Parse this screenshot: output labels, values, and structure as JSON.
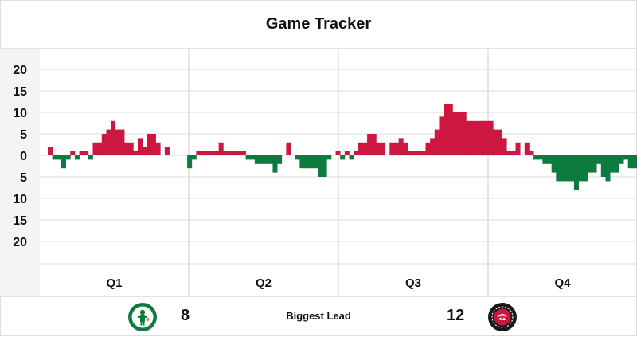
{
  "title": "Game Tracker",
  "colors": {
    "home": "#0d7a3e",
    "away": "#cc1740",
    "grid": "#dddddd",
    "axis_bg": "#f4f4f4"
  },
  "chart_data": {
    "type": "bar",
    "title": "Game Tracker",
    "y_tick_labels": [
      "20",
      "15",
      "10",
      "5",
      "0",
      "5",
      "10",
      "15",
      "20"
    ],
    "ylim": [
      -20,
      20
    ],
    "quarters": [
      "Q1",
      "Q2",
      "Q3",
      "Q4"
    ],
    "grid": true,
    "series": [
      {
        "team": "away",
        "note": "positive value = Raptors lead, negative value = Celtics lead",
        "values": [
          2,
          -1,
          -1,
          -3,
          -1,
          1,
          -1,
          1,
          1,
          -1,
          3,
          3,
          5,
          6,
          8,
          6,
          6,
          3,
          3,
          1,
          4,
          2,
          5,
          5,
          3,
          0,
          2,
          0,
          0,
          0,
          0,
          -3,
          -1,
          1,
          1,
          1,
          1,
          1,
          3,
          1,
          1,
          1,
          1,
          1,
          -1,
          -1,
          -2,
          -2,
          -2,
          -2,
          -4,
          -2,
          0,
          3,
          0,
          -1,
          -3,
          -3,
          -3,
          -3,
          -5,
          -5,
          -1,
          0,
          1,
          -1,
          1,
          -1,
          1,
          3,
          3,
          5,
          5,
          3,
          3,
          0,
          3,
          3,
          4,
          3,
          1,
          1,
          1,
          1,
          3,
          4,
          6,
          9,
          12,
          12,
          10,
          10,
          10,
          8,
          8,
          8,
          8,
          8,
          8,
          6,
          6,
          4,
          1,
          1,
          3,
          0,
          3,
          1,
          -1,
          -1,
          -2,
          -2,
          -4,
          -6,
          -6,
          -6,
          -6,
          -8,
          -6,
          -6,
          -4,
          -4,
          -2,
          -5,
          -6,
          -4,
          -4,
          -2,
          -1,
          -3,
          -3
        ]
      }
    ]
  },
  "footer": {
    "home_team_icon": "celtics-logo",
    "away_team_icon": "raptors-logo",
    "home_biggest_lead": "8",
    "away_biggest_lead": "12",
    "label": "Biggest Lead"
  }
}
